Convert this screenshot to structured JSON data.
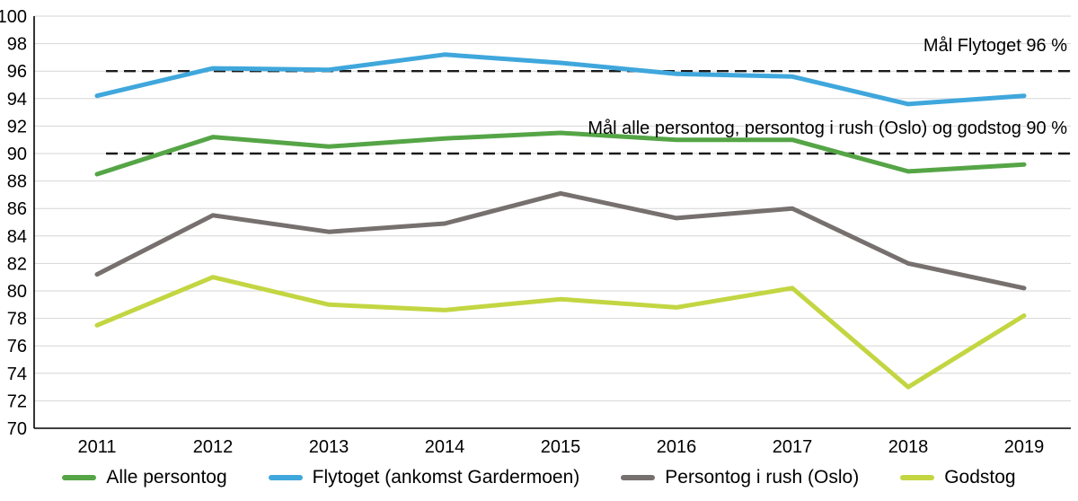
{
  "chart_data": {
    "type": "line",
    "title": "",
    "categories": [
      "2011",
      "2012",
      "2013",
      "2014",
      "2015",
      "2016",
      "2017",
      "2018",
      "2019"
    ],
    "series": [
      {
        "name": "Alle persontog",
        "color": "#55a546",
        "values": [
          88.5,
          91.2,
          90.5,
          91.1,
          91.5,
          91.0,
          91.0,
          88.7,
          89.2
        ]
      },
      {
        "name": "Flytoget (ankomst Gardermoen)",
        "color": "#3fa7dc",
        "values": [
          94.2,
          96.2,
          96.1,
          97.2,
          96.6,
          95.8,
          95.6,
          93.6,
          94.2
        ]
      },
      {
        "name": "Persontog i rush (Oslo)",
        "color": "#76706e",
        "values": [
          81.2,
          85.5,
          84.3,
          84.9,
          87.1,
          85.3,
          86.0,
          82.0,
          80.2
        ]
      },
      {
        "name": "Godstog",
        "color": "#c3d642",
        "values": [
          77.5,
          81.0,
          79.0,
          78.6,
          79.4,
          78.8,
          80.2,
          73.0,
          78.2
        ]
      }
    ],
    "ylim": [
      70,
      100
    ],
    "ytick_step": 2,
    "grid": true,
    "legend_position": "bottom",
    "target_lines": [
      {
        "value": 96,
        "label": "Mål Flytoget 96 %"
      },
      {
        "value": 90,
        "label": "Mål alle persontog, persontog i rush (Oslo) og godstog 90 %"
      }
    ],
    "axis_color": "#000000",
    "gridline_color": "#d6d6d6",
    "target_line_color": "#1a1a1a",
    "tick_label_color": "#000000"
  }
}
